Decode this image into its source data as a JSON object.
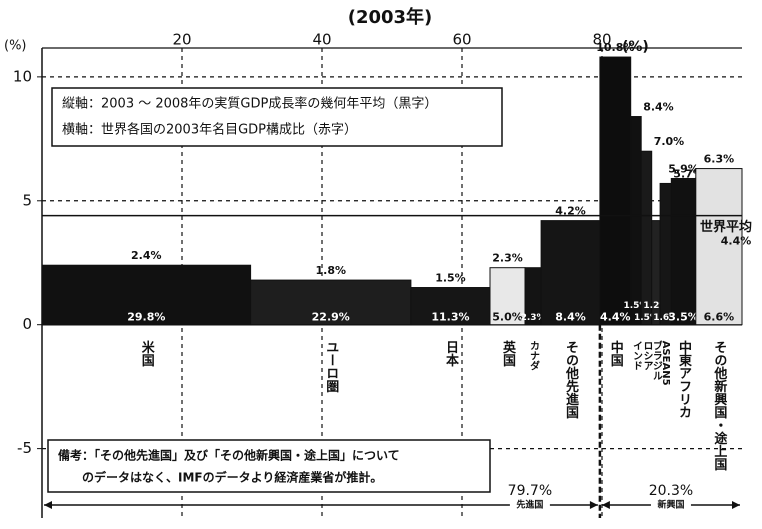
{
  "chart_data": {
    "type": "variable-width-bar",
    "title": "(2003年)",
    "x_unit": "(%)",
    "y_unit": "(%)",
    "categories": [
      "米国",
      "ユーロ圏",
      "日本",
      "英国",
      "カナダ",
      "その他先進国",
      "中国",
      "インド",
      "ロシア",
      "ブラジル",
      "ASEAN5",
      "中東アフリカ",
      "その他新興国・途上国"
    ],
    "values": [
      2.4,
      1.8,
      1.5,
      2.3,
      2.3,
      4.2,
      10.8,
      8.4,
      7.0,
      4.2,
      5.7,
      5.9,
      6.3
    ],
    "value_labels": [
      "2.4%",
      "1.8%",
      "1.5%",
      "2.3%",
      "2.3%",
      "4.2%",
      "10.8%",
      "8.4%",
      "7.0%",
      "4.2%",
      "5.7%",
      "5.9%",
      "6.3%"
    ],
    "widths": [
      29.8,
      22.9,
      11.3,
      5.0,
      2.3,
      8.4,
      4.4,
      1.5,
      1.5,
      1.2,
      1.6,
      3.5,
      6.6
    ],
    "width_labels": [
      "29.8%",
      "22.9%",
      "11.3%",
      "5.0%",
      "2.3%",
      "8.4%",
      "4.4%",
      "1.5%",
      "1.5%",
      "1.2%",
      "1.6%",
      "3.5%",
      "6.6%"
    ],
    "colors": [
      "#111111",
      "#1e1e1e",
      "#161616",
      "#e8e8e8",
      "#141414",
      "#151515",
      "#0d0d0d",
      "#111111",
      "#1a1a1a",
      "#222222",
      "#161616",
      "#111111",
      "#e2e2e2"
    ],
    "xlim": [
      0,
      100
    ],
    "xticks": [
      20,
      40,
      60,
      80
    ],
    "ylim": [
      -7.8,
      10.6
    ],
    "yticks": [
      10,
      5,
      0,
      -5
    ],
    "grid": true,
    "world_average": {
      "label": "世界平均",
      "value": 4.4,
      "value_label": "4.4%"
    },
    "axis_notes": [
      "縦軸：2003 ～ 2008年の実質GDP成長率の幾何年平均（黒字）",
      "横軸：世界各国の2003年名目GDP構成比（赤字）"
    ],
    "footnote": [
      "備考：「その他先進国」及び「その他新興国・途上国」について",
      "のデータはなく、IMFのデータより経済産業省が推計。"
    ],
    "groups": [
      {
        "name": "先進国",
        "share": 79.7,
        "share_label": "79.7%"
      },
      {
        "name": "新興国",
        "share": 20.3,
        "share_label": "20.3%"
      }
    ]
  }
}
